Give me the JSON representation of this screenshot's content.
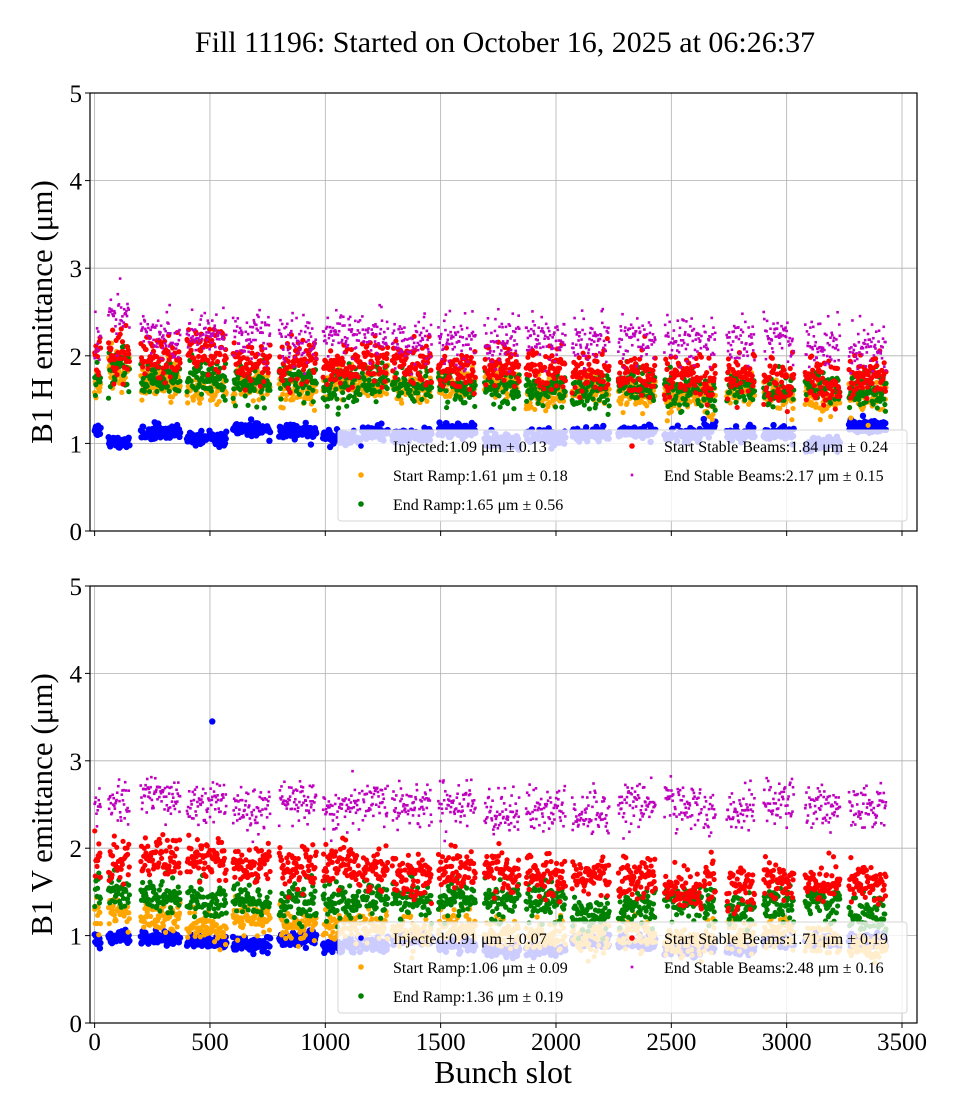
{
  "chart_data": {
    "title": "Fill 11196: Started on October 16, 2025 at 06:26:37",
    "xlabel": "Bunch slot",
    "xticks": [
      "0",
      "500",
      "1000",
      "1500",
      "2000",
      "2500",
      "3000",
      "3500"
    ],
    "yticks": [
      "0",
      "1",
      "2",
      "3",
      "4",
      "5"
    ],
    "xlim": [
      -20,
      3565
    ],
    "grid": true,
    "legend_placement": "lower-right",
    "trains": [
      [
        0,
        25
      ],
      [
        60,
        150
      ],
      [
        200,
        370
      ],
      [
        400,
        570
      ],
      [
        600,
        760
      ],
      [
        800,
        960
      ],
      [
        990,
        1150
      ],
      [
        1160,
        1270
      ],
      [
        1290,
        1460
      ],
      [
        1490,
        1650
      ],
      [
        1690,
        1840
      ],
      [
        1870,
        2040
      ],
      [
        2070,
        2230
      ],
      [
        2270,
        2430
      ],
      [
        2470,
        2630
      ],
      [
        2640,
        2690
      ],
      [
        2740,
        2860
      ],
      [
        2900,
        3030
      ],
      [
        3080,
        3230
      ],
      [
        3270,
        3430
      ]
    ],
    "subplots": [
      {
        "type": "scatter",
        "ylabel": "B1 H emittance (μm)",
        "ylim": [
          0,
          5
        ],
        "series": [
          {
            "name": "Injected",
            "legend": "Injected:1.09 μm ± 0.13",
            "mean": 1.09,
            "std": 0.13,
            "color": "#0000ff",
            "marker": "circle"
          },
          {
            "name": "Start Ramp",
            "legend": "Start Ramp:1.61 μm ± 0.18",
            "mean": 1.61,
            "std": 0.18,
            "color": "#ffa500",
            "marker": "circle"
          },
          {
            "name": "End Ramp",
            "legend": "End Ramp:1.65 μm ± 0.56",
            "mean": 1.65,
            "std": 0.56,
            "color": "#008000",
            "marker": "circle"
          },
          {
            "name": "Start Stable Beams",
            "legend": "Start Stable Beams:1.84 μm ± 0.24",
            "mean": 1.84,
            "std": 0.24,
            "color": "#ff0000",
            "marker": "circle"
          },
          {
            "name": "End Stable Beams",
            "legend": "End Stable Beams:2.17 μm ± 0.15",
            "mean": 2.17,
            "std": 0.15,
            "color": "#bf00bf",
            "marker": "square"
          }
        ]
      },
      {
        "type": "scatter",
        "ylabel": "B1 V emittance (μm)",
        "ylim": [
          0,
          5
        ],
        "series": [
          {
            "name": "Injected",
            "legend": "Injected:0.91 μm ± 0.07",
            "mean": 0.91,
            "std": 0.07,
            "color": "#0000ff",
            "marker": "circle"
          },
          {
            "name": "Start Ramp",
            "legend": "Start Ramp:1.06 μm ± 0.09",
            "mean": 1.06,
            "std": 0.09,
            "color": "#ffa500",
            "marker": "circle"
          },
          {
            "name": "End Ramp",
            "legend": "End Ramp:1.36 μm ± 0.19",
            "mean": 1.36,
            "std": 0.19,
            "color": "#008000",
            "marker": "circle"
          },
          {
            "name": "Start Stable Beams",
            "legend": "Start Stable Beams:1.71 μm ± 0.19",
            "mean": 1.71,
            "std": 0.19,
            "color": "#ff0000",
            "marker": "circle"
          },
          {
            "name": "End Stable Beams",
            "legend": "End Stable Beams:2.48 μm ± 0.16",
            "mean": 2.48,
            "std": 0.16,
            "color": "#bf00bf",
            "marker": "square"
          }
        ]
      }
    ]
  }
}
